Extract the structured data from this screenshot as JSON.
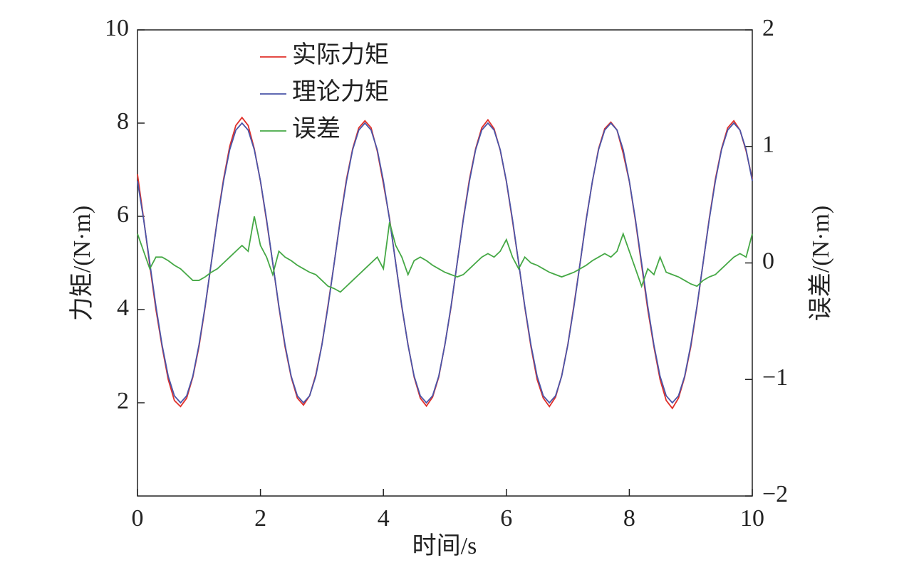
{
  "chart_data": {
    "type": "line",
    "xlabel": "时间/s",
    "ylabel": "力矩/(N·m)",
    "y2label": "误差/(N·m)",
    "xlim": [
      0,
      10
    ],
    "xticks": [
      0,
      2,
      4,
      6,
      8,
      10
    ],
    "ylim": [
      0,
      10
    ],
    "yticks": [
      2,
      4,
      6,
      8,
      10
    ],
    "y2lim": [
      -2,
      2
    ],
    "y2ticks": [
      {
        "value": -2,
        "label": "−2"
      },
      {
        "value": -1,
        "label": "−1"
      },
      0,
      1,
      2
    ],
    "x": [
      0,
      0.1,
      0.2,
      0.3,
      0.4,
      0.5,
      0.6,
      0.7,
      0.8,
      0.9,
      1,
      1.1,
      1.2,
      1.3,
      1.4,
      1.5,
      1.6,
      1.7,
      1.8,
      1.9,
      2,
      2.1,
      2.2,
      2.3,
      2.4,
      2.5,
      2.6,
      2.7,
      2.8,
      2.9,
      3,
      3.1,
      3.2,
      3.3,
      3.4,
      3.5,
      3.6,
      3.7,
      3.8,
      3.9,
      4,
      4.1,
      4.2,
      4.3,
      4.4,
      4.5,
      4.6,
      4.7,
      4.8,
      4.9,
      5,
      5.1,
      5.2,
      5.3,
      5.4,
      5.5,
      5.6,
      5.7,
      5.8,
      5.9,
      6,
      6.1,
      6.2,
      6.3,
      6.4,
      6.5,
      6.6,
      6.7,
      6.8,
      6.9,
      7,
      7.1,
      7.2,
      7.3,
      7.4,
      7.5,
      7.6,
      7.7,
      7.8,
      7.9,
      8,
      8.1,
      8.2,
      8.3,
      8.4,
      8.5,
      8.6,
      8.7,
      8.8,
      8.9,
      9,
      9.1,
      9.2,
      9.3,
      9.4,
      9.5,
      9.6,
      9.7,
      9.8,
      9.9,
      10
    ],
    "series": [
      {
        "name": "实际力矩",
        "color": "#e0302a",
        "values": [
          6.9,
          5.95,
          4.95,
          4.0,
          3.2,
          2.5,
          2.05,
          1.92,
          2.1,
          2.55,
          3.2,
          4.05,
          5.0,
          5.95,
          6.8,
          7.5,
          7.95,
          8.12,
          7.95,
          7.45,
          6.75,
          5.9,
          5.0,
          4.05,
          3.2,
          2.55,
          2.1,
          1.95,
          2.15,
          2.6,
          3.25,
          4.1,
          5.0,
          5.95,
          6.8,
          7.45,
          7.9,
          8.05,
          7.9,
          7.4,
          6.7,
          5.95,
          5.0,
          4.05,
          3.25,
          2.55,
          2.1,
          1.93,
          2.12,
          2.55,
          3.25,
          4.05,
          5.0,
          5.95,
          6.8,
          7.45,
          7.9,
          8.07,
          7.88,
          7.42,
          6.75,
          5.9,
          5.0,
          4.05,
          3.2,
          2.5,
          2.1,
          1.92,
          2.12,
          2.58,
          3.25,
          4.1,
          5.0,
          5.95,
          6.75,
          7.45,
          7.88,
          8.02,
          7.85,
          7.35,
          6.75,
          5.9,
          4.95,
          4.0,
          3.2,
          2.5,
          2.05,
          1.88,
          2.1,
          2.55,
          3.2,
          4.05,
          5.0,
          5.95,
          6.8,
          7.45,
          7.9,
          8.05,
          7.85,
          7.4,
          6.8
        ]
      },
      {
        "name": "理论力矩",
        "color": "#4a55a8",
        "values": [
          6.76,
          5.93,
          5.0,
          4.07,
          3.24,
          2.57,
          2.15,
          2.0,
          2.15,
          2.57,
          3.24,
          4.07,
          5.0,
          5.93,
          6.76,
          7.43,
          7.85,
          8.0,
          7.85,
          7.43,
          6.76,
          5.93,
          5.0,
          4.07,
          3.24,
          2.57,
          2.15,
          2.0,
          2.15,
          2.57,
          3.24,
          4.07,
          5.0,
          5.93,
          6.76,
          7.43,
          7.85,
          8.0,
          7.85,
          7.43,
          6.76,
          5.93,
          5.0,
          4.07,
          3.24,
          2.57,
          2.15,
          2.0,
          2.15,
          2.57,
          3.24,
          4.07,
          5.0,
          5.93,
          6.76,
          7.43,
          7.85,
          8.0,
          7.85,
          7.43,
          6.76,
          5.93,
          5.0,
          4.07,
          3.24,
          2.57,
          2.15,
          2.0,
          2.15,
          2.57,
          3.24,
          4.07,
          5.0,
          5.93,
          6.76,
          7.43,
          7.85,
          8.0,
          7.85,
          7.43,
          6.76,
          5.93,
          5.0,
          4.07,
          3.24,
          2.57,
          2.15,
          2.0,
          2.15,
          2.57,
          3.24,
          4.07,
          5.0,
          5.93,
          6.76,
          7.43,
          7.85,
          8.0,
          7.85,
          7.43,
          6.76
        ]
      },
      {
        "name": "误差",
        "color": "#45a845",
        "axis": "y2",
        "values": [
          0.25,
          0.1,
          -0.05,
          0.05,
          0.05,
          0.02,
          -0.02,
          -0.05,
          -0.1,
          -0.15,
          -0.15,
          -0.12,
          -0.08,
          -0.05,
          0,
          0.05,
          0.1,
          0.15,
          0.1,
          0.4,
          0.15,
          0.05,
          -0.1,
          0.1,
          0.05,
          0.02,
          -0.02,
          -0.05,
          -0.08,
          -0.1,
          -0.15,
          -0.2,
          -0.22,
          -0.25,
          -0.2,
          -0.15,
          -0.1,
          -0.05,
          0,
          0.05,
          -0.05,
          0.35,
          0.15,
          0.05,
          -0.1,
          0.02,
          0.05,
          0.02,
          -0.02,
          -0.05,
          -0.08,
          -0.1,
          -0.12,
          -0.1,
          -0.05,
          0,
          0.05,
          0.08,
          0.05,
          0.1,
          0.2,
          0.05,
          -0.05,
          0.05,
          0,
          -0.02,
          -0.05,
          -0.08,
          -0.1,
          -0.12,
          -0.1,
          -0.08,
          -0.05,
          -0.02,
          0.02,
          0.05,
          0.08,
          0.05,
          0.1,
          0.25,
          0.1,
          -0.05,
          -0.2,
          -0.05,
          -0.1,
          0.05,
          -0.08,
          -0.1,
          -0.12,
          -0.15,
          -0.18,
          -0.2,
          -0.15,
          -0.12,
          -0.1,
          -0.05,
          0,
          0.05,
          0.08,
          0.05,
          0.25
        ]
      }
    ]
  }
}
